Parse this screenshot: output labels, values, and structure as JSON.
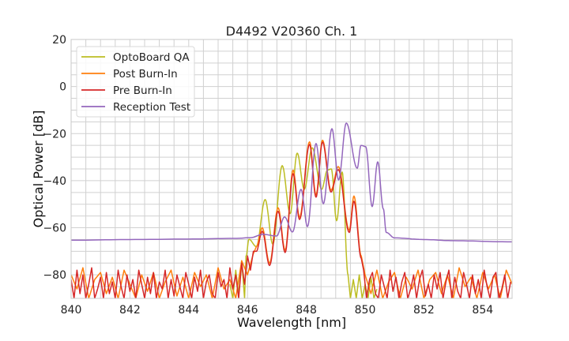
{
  "chart_data": {
    "type": "line",
    "title": "D4492 V20360 Ch. 1",
    "xlabel": "Wavelength [nm]",
    "ylabel": "Optical Power [dB]",
    "xlim": [
      840,
      855
    ],
    "ylim": [
      -90,
      20
    ],
    "xticks": [
      840,
      842,
      844,
      846,
      848,
      850,
      852,
      854
    ],
    "xtick_labels": [
      "840",
      "842",
      "844",
      "846",
      "848",
      "850",
      "852",
      "854"
    ],
    "yticks": [
      -80,
      -60,
      -40,
      -20,
      0,
      20
    ],
    "ytick_labels": [
      "−80",
      "−60",
      "−40",
      "−20",
      "0",
      "20"
    ],
    "grid": true,
    "legend_position": "top-left",
    "series": [
      {
        "name": "OptoBoard QA",
        "color": "#bcbd22",
        "points": [
          [
            845.95,
            -72
          ],
          [
            846.05,
            -64.9
          ],
          [
            846.3,
            -68
          ],
          [
            846.6,
            -48
          ],
          [
            846.86,
            -67
          ],
          [
            847.18,
            -33.6
          ],
          [
            847.45,
            -54
          ],
          [
            847.69,
            -28.3
          ],
          [
            847.93,
            -43.7
          ],
          [
            848.2,
            -26
          ],
          [
            848.52,
            -43.7
          ],
          [
            848.72,
            -35.5
          ],
          [
            848.85,
            -35
          ],
          [
            849.03,
            -57
          ],
          [
            849.22,
            -36.3
          ],
          [
            849.42,
            -80
          ]
        ],
        "noise": [
          {
            "x0": 845.4,
            "dx": 0.1,
            "y": [
              -84,
              -90,
              -78,
              -88,
              -74,
              -90
            ]
          },
          {
            "x0": 849.5,
            "dx": 0.1,
            "y": [
              -90,
              -82,
              -90,
              -80,
              -90,
              -84,
              -90,
              -81,
              -90,
              -86
            ]
          }
        ]
      },
      {
        "name": "Post Burn-In",
        "color": "#ff7f0e",
        "points": [
          [
            846.3,
            -68
          ],
          [
            846.5,
            -60
          ],
          [
            846.75,
            -75
          ],
          [
            847.04,
            -51.5
          ],
          [
            847.28,
            -69.5
          ],
          [
            847.55,
            -35.5
          ],
          [
            847.77,
            -55.5
          ],
          [
            848.11,
            -23.5
          ],
          [
            848.33,
            -46
          ],
          [
            848.55,
            -22.8
          ],
          [
            848.84,
            -44
          ],
          [
            849.09,
            -34
          ],
          [
            849.46,
            -61
          ],
          [
            849.62,
            -46.5
          ],
          [
            849.87,
            -72
          ]
        ],
        "noise": [
          {
            "x0": 840.0,
            "dx": 0.2,
            "y": [
              -80,
              -86,
              -77,
              -90,
              -82,
              -79,
              -88,
              -81,
              -90,
              -78,
              -84,
              -90,
              -80,
              -87,
              -79,
              -90,
              -83,
              -78,
              -89,
              -81,
              -90,
              -79,
              -85,
              -80,
              -90,
              -77,
              -86,
              -82,
              -90,
              -74,
              -80,
              -71
            ]
          },
          {
            "x0": 850.0,
            "dx": 0.2,
            "y": [
              -80,
              -88,
              -78,
              -90,
              -83,
              -79,
              -90,
              -81,
              -86,
              -78,
              -90,
              -82,
              -79,
              -88,
              -80,
              -90,
              -77,
              -85,
              -81,
              -90,
              -79,
              -86,
              -80,
              -90,
              -78,
              -84
            ]
          }
        ]
      },
      {
        "name": "Pre Burn-In",
        "color": "#d62728",
        "points": [
          [
            846.3,
            -70
          ],
          [
            846.5,
            -61.5
          ],
          [
            846.75,
            -76
          ],
          [
            847.04,
            -53
          ],
          [
            847.28,
            -70.5
          ],
          [
            847.55,
            -37
          ],
          [
            847.77,
            -56.5
          ],
          [
            848.11,
            -24.6
          ],
          [
            848.33,
            -47
          ],
          [
            848.55,
            -23.6
          ],
          [
            848.84,
            -44.8
          ],
          [
            849.09,
            -35.3
          ],
          [
            849.46,
            -62
          ],
          [
            849.62,
            -48.7
          ],
          [
            849.87,
            -73
          ]
        ],
        "noise": [
          {
            "x0": 840.0,
            "dx": 0.1,
            "y": [
              -82,
              -90,
              -78,
              -88,
              -80,
              -90,
              -84,
              -77,
              -90,
              -86,
              -81,
              -90,
              -79,
              -88,
              -83,
              -90,
              -78,
              -85,
              -90,
              -80,
              -87,
              -82,
              -90,
              -78,
              -84,
              -90,
              -81,
              -88,
              -79,
              -90,
              -83,
              -86,
              -78,
              -90,
              -82,
              -89,
              -80,
              -85,
              -90,
              -79,
              -84,
              -90,
              -81,
              -87,
              -78,
              -90,
              -83,
              -80,
              -88,
              -90,
              -79,
              -85,
              -82,
              -90,
              -77,
              -86,
              -80,
              -90,
              -75,
              -84,
              -72,
              -78,
              -70
            ]
          },
          {
            "x0": 849.95,
            "dx": 0.1,
            "y": [
              -78,
              -90,
              -82,
              -79,
              -88,
              -90,
              -80,
              -85,
              -90,
              -78,
              -87,
              -81,
              -90,
              -83,
              -79,
              -90,
              -86,
              -80,
              -90,
              -82,
              -78,
              -89,
              -84,
              -90,
              -80,
              -86,
              -79,
              -90,
              -83,
              -78,
              -90,
              -81,
              -87,
              -90,
              -79,
              -84,
              -90,
              -80,
              -88,
              -82,
              -90,
              -78,
              -85,
              -90,
              -81,
              -79,
              -90,
              -86,
              -80,
              -90,
              -83
            ]
          }
        ]
      },
      {
        "name": "Reception Test",
        "color": "#9467bd",
        "points": [
          [
            840,
            -65.3
          ],
          [
            842,
            -65
          ],
          [
            844,
            -64.8
          ],
          [
            845.65,
            -64.5
          ],
          [
            846.1,
            -64.2
          ],
          [
            846.53,
            -62.8
          ],
          [
            846.99,
            -63.5
          ],
          [
            847.26,
            -55.4
          ],
          [
            847.53,
            -61.8
          ],
          [
            847.82,
            -43.7
          ],
          [
            848.04,
            -59.5
          ],
          [
            848.33,
            -24.2
          ],
          [
            848.58,
            -49.8
          ],
          [
            848.87,
            -17.9
          ],
          [
            849.1,
            -39.7
          ],
          [
            849.36,
            -15.5
          ],
          [
            849.73,
            -34.7
          ],
          [
            849.86,
            -25
          ],
          [
            850.02,
            -25.5
          ],
          [
            850.24,
            -51
          ],
          [
            850.43,
            -32
          ],
          [
            850.62,
            -52
          ],
          [
            850.72,
            -62
          ],
          [
            851,
            -64.3
          ],
          [
            852,
            -65
          ],
          [
            853,
            -65.5
          ],
          [
            855,
            -66
          ]
        ],
        "noise": []
      }
    ]
  }
}
